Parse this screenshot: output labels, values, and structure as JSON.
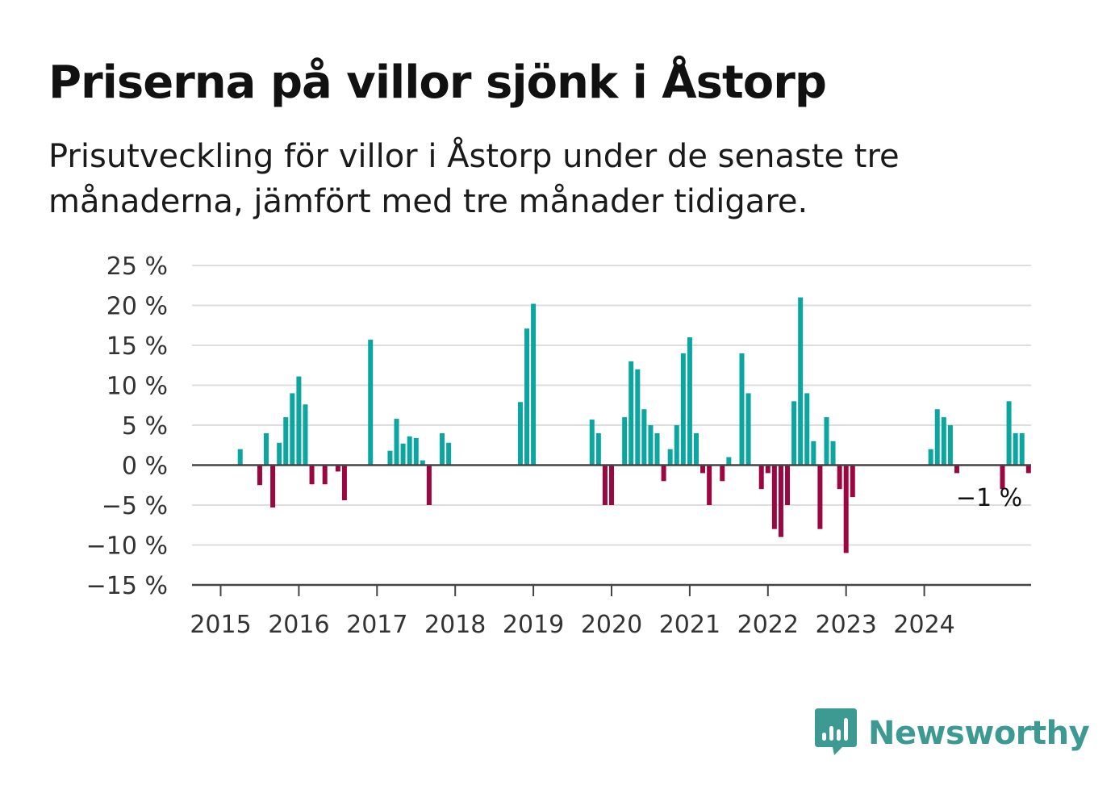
{
  "title": "Priserna på villor sjönk i Åstorp",
  "subtitle": "Prisutveckling för villor i Åstorp under de senaste tre månaderna, jämfört med tre månader tidigare.",
  "brand": {
    "name": "Newsworthy"
  },
  "colors": {
    "positive": "#0ba69f",
    "negative": "#9b0841",
    "grid": "#dddddd",
    "axis": "#444444",
    "brand": "#3c9a92"
  },
  "chart_data": {
    "type": "bar",
    "x_start": "2015-01",
    "x_end": "2024-12",
    "x_ticks": [
      "2015",
      "2016",
      "2017",
      "2018",
      "2019",
      "2020",
      "2021",
      "2022",
      "2023",
      "2024"
    ],
    "y_ticks": [
      "25 %",
      "20 %",
      "15 %",
      "10 %",
      "5 %",
      "0 %",
      "−5 %",
      "−10 %",
      "−15 %"
    ],
    "ylim": [
      -15,
      25
    ],
    "grid": true,
    "end_label": "−1 %",
    "values": [
      0,
      0,
      0,
      2,
      0,
      0,
      -2.5,
      4,
      -5.3,
      2.8,
      6,
      9,
      11.1,
      7.6,
      -2.4,
      0,
      -2.4,
      0,
      -0.8,
      -4.4,
      0,
      0,
      0,
      15.7,
      0,
      0,
      1.8,
      5.8,
      2.7,
      3.6,
      3.4,
      0.6,
      -5,
      0,
      4,
      2.8,
      0,
      0,
      0,
      0,
      0,
      0,
      0,
      0,
      0,
      0,
      7.9,
      17.1,
      20.2,
      0,
      0,
      0,
      0,
      0,
      0,
      0,
      0,
      5.7,
      4,
      -5,
      -5,
      0,
      6,
      13,
      12,
      7,
      5,
      4,
      -2,
      2,
      5,
      14,
      16,
      4,
      -1,
      -5,
      0,
      -2,
      1,
      0,
      14,
      9,
      0,
      -3,
      -1,
      -8,
      -9,
      -5,
      8,
      21,
      9,
      3,
      -8,
      6,
      3,
      -3,
      -11,
      -4,
      0,
      0,
      0,
      0,
      0,
      0,
      0,
      0,
      0,
      0,
      0,
      2,
      7,
      6,
      5,
      -1,
      0,
      0,
      0,
      0,
      0,
      0,
      -3,
      8,
      4,
      4,
      -1
    ]
  }
}
